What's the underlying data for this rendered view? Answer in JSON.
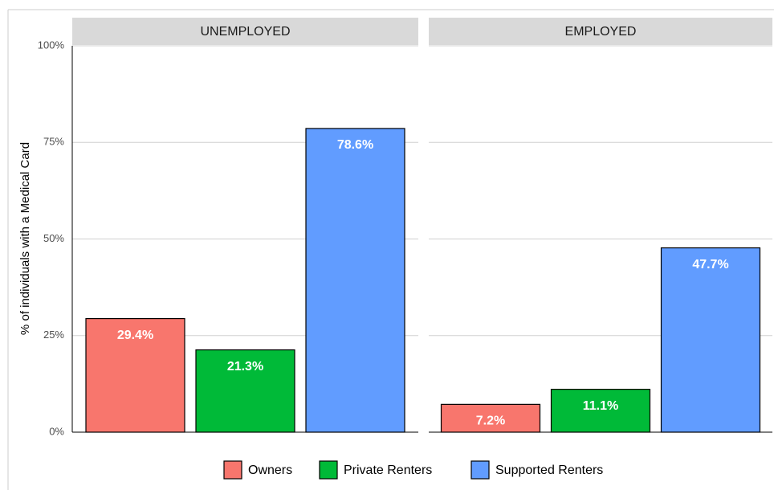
{
  "chart_data": {
    "type": "bar",
    "ylabel": "% of individuals with a Medical Card",
    "categories": [
      "UNEMPLOYED",
      "EMPLOYED"
    ],
    "series": [
      {
        "name": "Owners",
        "color": "#f8766d",
        "values": [
          29.4,
          7.2
        ],
        "value_labels": [
          "29.4%",
          "7.2%"
        ]
      },
      {
        "name": "Private Renters",
        "color": "#00ba38",
        "values": [
          21.3,
          11.1
        ],
        "value_labels": [
          "21.3%",
          "11.1%"
        ]
      },
      {
        "name": "Supported Renters",
        "color": "#619cff",
        "values": [
          78.6,
          47.7
        ],
        "value_labels": [
          "78.6%",
          "47.7%"
        ]
      }
    ],
    "ylim": [
      0,
      100
    ],
    "yticks": [
      {
        "value": 0,
        "label": "0%"
      },
      {
        "value": 25,
        "label": "25%"
      },
      {
        "value": 50,
        "label": "50%"
      },
      {
        "value": 75,
        "label": "75%"
      },
      {
        "value": 100,
        "label": "100%"
      }
    ],
    "grid": true,
    "legend": "bottom"
  }
}
